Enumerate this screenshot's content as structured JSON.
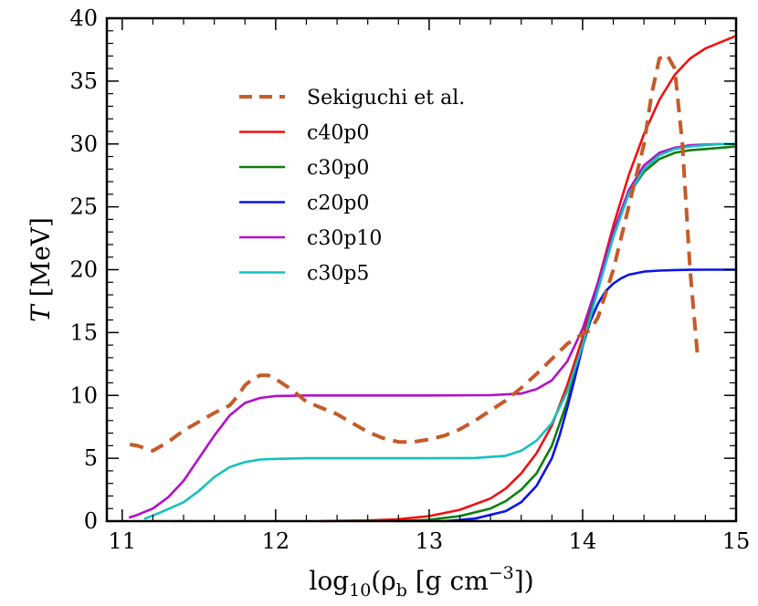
{
  "chart_data": {
    "type": "line",
    "xlabel": {
      "prefix": "log",
      "prefix_sub": "10",
      "open": "(ρ",
      "rho_sub": "b",
      "units": " [g cm",
      "units_sup": "−3",
      "close": "])"
    },
    "ylabel": {
      "var": "T",
      "units": " [MeV]"
    },
    "xlim": [
      10.9,
      15
    ],
    "ylim": [
      0,
      40
    ],
    "xticks": [
      "11",
      "12",
      "13",
      "14",
      "15"
    ],
    "yticks": [
      "0",
      "5",
      "10",
      "15",
      "20",
      "25",
      "30",
      "35",
      "40"
    ],
    "grid": false,
    "legend_position": "upper-left",
    "series": [
      {
        "name": "Sekiguchi et al.",
        "color": "#c55a28",
        "dash": "dashed",
        "x": [
          11.05,
          11.1,
          11.2,
          11.3,
          11.4,
          11.5,
          11.6,
          11.7,
          11.75,
          11.8,
          11.85,
          11.9,
          11.95,
          12.0,
          12.1,
          12.2,
          12.3,
          12.4,
          12.5,
          12.6,
          12.7,
          12.8,
          12.9,
          13.0,
          13.1,
          13.2,
          13.3,
          13.4,
          13.5,
          13.6,
          13.7,
          13.8,
          13.9,
          14.0,
          14.05,
          14.1,
          14.2,
          14.3,
          14.4,
          14.45,
          14.5,
          14.55,
          14.6,
          14.65,
          14.7,
          14.75
        ],
        "y": [
          6.1,
          6.0,
          5.6,
          6.3,
          7.2,
          7.9,
          8.6,
          9.2,
          9.9,
          10.8,
          11.3,
          11.6,
          11.6,
          11.3,
          10.5,
          9.5,
          9.0,
          8.5,
          7.8,
          7.1,
          6.6,
          6.3,
          6.3,
          6.5,
          6.8,
          7.3,
          8.0,
          8.8,
          9.6,
          10.6,
          11.7,
          12.9,
          14.1,
          14.9,
          15.2,
          16.2,
          20.0,
          25.0,
          30.0,
          34.0,
          36.8,
          37.1,
          36.0,
          30.0,
          20.0,
          13.0
        ]
      },
      {
        "name": "c40p0",
        "color": "#f01010",
        "dash": "solid",
        "x": [
          12.3,
          12.6,
          12.8,
          13.0,
          13.2,
          13.4,
          13.5,
          13.6,
          13.7,
          13.8,
          13.9,
          14.0,
          14.1,
          14.2,
          14.3,
          14.4,
          14.5,
          14.6,
          14.7,
          14.8,
          14.9,
          15.0
        ],
        "y": [
          0.0,
          0.05,
          0.15,
          0.4,
          0.9,
          1.8,
          2.6,
          3.8,
          5.4,
          7.6,
          10.8,
          14.6,
          19.0,
          23.5,
          27.5,
          30.8,
          33.5,
          35.5,
          36.8,
          37.6,
          38.1,
          38.6
        ]
      },
      {
        "name": "c30p0",
        "color": "#0f7d0f",
        "dash": "solid",
        "x": [
          12.8,
          13.0,
          13.2,
          13.4,
          13.5,
          13.6,
          13.7,
          13.8,
          13.9,
          14.0,
          14.1,
          14.2,
          14.3,
          14.4,
          14.5,
          14.6,
          14.7,
          14.8,
          14.9,
          15.0
        ],
        "y": [
          0.0,
          0.1,
          0.4,
          1.0,
          1.6,
          2.5,
          3.8,
          6.0,
          9.5,
          14.0,
          18.8,
          23.0,
          26.0,
          27.8,
          28.8,
          29.3,
          29.5,
          29.6,
          29.7,
          29.8
        ]
      },
      {
        "name": "c20p0",
        "color": "#0a14e6",
        "dash": "solid",
        "x": [
          13.1,
          13.3,
          13.5,
          13.6,
          13.7,
          13.8,
          13.85,
          13.9,
          13.95,
          14.0,
          14.05,
          14.1,
          14.15,
          14.2,
          14.25,
          14.3,
          14.4,
          14.5,
          14.6,
          14.7,
          14.8,
          14.9,
          15.0
        ],
        "y": [
          0.0,
          0.2,
          0.8,
          1.5,
          2.8,
          5.0,
          6.8,
          9.0,
          11.4,
          13.9,
          15.9,
          17.3,
          18.3,
          18.9,
          19.3,
          19.6,
          19.85,
          19.93,
          19.97,
          19.99,
          20.0,
          20.0,
          20.0
        ]
      },
      {
        "name": "c30p10",
        "color": "#b30fc7",
        "dash": "solid",
        "x": [
          11.05,
          11.1,
          11.2,
          11.3,
          11.4,
          11.5,
          11.6,
          11.7,
          11.8,
          11.9,
          12.0,
          12.2,
          12.5,
          13.0,
          13.4,
          13.6,
          13.7,
          13.8,
          13.9,
          14.0,
          14.1,
          14.2,
          14.3,
          14.4,
          14.5,
          14.6,
          14.7,
          14.8,
          14.9,
          15.0
        ],
        "y": [
          0.3,
          0.5,
          1.0,
          1.9,
          3.2,
          5.0,
          6.8,
          8.4,
          9.4,
          9.8,
          9.95,
          10.0,
          10.0,
          10.0,
          10.02,
          10.15,
          10.5,
          11.2,
          12.7,
          15.3,
          19.0,
          23.0,
          26.3,
          28.3,
          29.3,
          29.7,
          29.9,
          29.95,
          30.0,
          30.0
        ]
      },
      {
        "name": "c30p5",
        "color": "#14c0c0",
        "dash": "solid",
        "x": [
          11.15,
          11.25,
          11.4,
          11.5,
          11.6,
          11.7,
          11.8,
          11.9,
          12.0,
          12.2,
          12.5,
          13.0,
          13.3,
          13.5,
          13.6,
          13.7,
          13.8,
          13.9,
          14.0,
          14.1,
          14.2,
          14.3,
          14.4,
          14.5,
          14.6,
          14.7,
          14.8,
          14.9,
          15.0
        ],
        "y": [
          0.2,
          0.7,
          1.5,
          2.4,
          3.5,
          4.3,
          4.7,
          4.9,
          4.95,
          5.0,
          5.0,
          5.0,
          5.02,
          5.2,
          5.6,
          6.4,
          7.8,
          10.3,
          14.0,
          18.4,
          22.6,
          26.0,
          28.0,
          29.1,
          29.6,
          29.8,
          29.9,
          30.0,
          30.0
        ]
      }
    ]
  }
}
